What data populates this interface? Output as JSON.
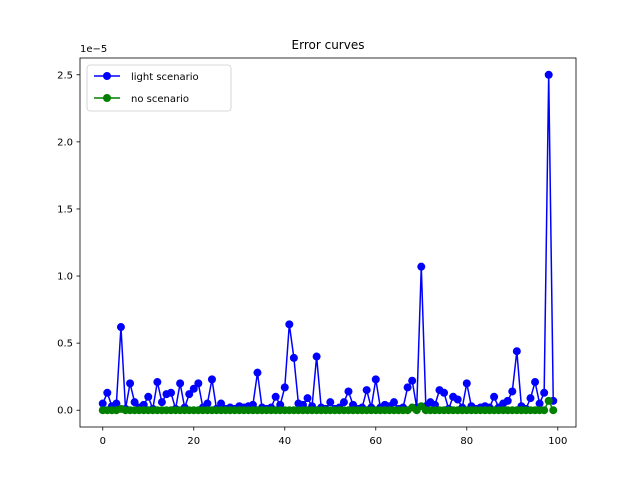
{
  "chart_data": {
    "type": "line",
    "title": "Error curves",
    "xlabel": "",
    "ylabel": "",
    "y_offset_label": "1e−5",
    "xlim": [
      -5,
      104
    ],
    "ylim": [
      -0.125,
      2.625
    ],
    "x_ticks": [
      0,
      20,
      40,
      60,
      80,
      100
    ],
    "x_tick_labels": [
      "0",
      "20",
      "40",
      "60",
      "80",
      "100"
    ],
    "y_ticks": [
      0.0,
      0.5,
      1.0,
      1.5,
      2.0,
      2.5
    ],
    "y_tick_labels": [
      "0.0",
      "0.5",
      "1.0",
      "1.5",
      "2.0",
      "2.5"
    ],
    "y_unit_note": "values in units of 1e-5",
    "grid": false,
    "legend_position": "top-left",
    "x": [
      0,
      1,
      2,
      3,
      4,
      5,
      6,
      7,
      8,
      9,
      10,
      11,
      12,
      13,
      14,
      15,
      16,
      17,
      18,
      19,
      20,
      21,
      22,
      23,
      24,
      25,
      26,
      27,
      28,
      29,
      30,
      31,
      32,
      33,
      34,
      35,
      36,
      37,
      38,
      39,
      40,
      41,
      42,
      43,
      44,
      45,
      46,
      47,
      48,
      49,
      50,
      51,
      52,
      53,
      54,
      55,
      56,
      57,
      58,
      59,
      60,
      61,
      62,
      63,
      64,
      65,
      66,
      67,
      68,
      69,
      70,
      71,
      72,
      73,
      74,
      75,
      76,
      77,
      78,
      79,
      80,
      81,
      82,
      83,
      84,
      85,
      86,
      87,
      88,
      89,
      90,
      91,
      92,
      93,
      94,
      95,
      96,
      97,
      98,
      99
    ],
    "series": [
      {
        "name": "light scenario",
        "color": "#0000ff",
        "values": [
          0.05,
          0.13,
          0.03,
          0.05,
          0.62,
          0.01,
          0.2,
          0.06,
          0.02,
          0.04,
          0.1,
          0.01,
          0.21,
          0.06,
          0.12,
          0.13,
          0.01,
          0.2,
          0.02,
          0.12,
          0.16,
          0.2,
          0.02,
          0.05,
          0.23,
          0.01,
          0.05,
          0.01,
          0.02,
          0.01,
          0.03,
          0.02,
          0.03,
          0.04,
          0.28,
          0.02,
          0.01,
          0.02,
          0.1,
          0.04,
          0.17,
          0.64,
          0.39,
          0.05,
          0.04,
          0.09,
          0.03,
          0.4,
          0.02,
          0.01,
          0.06,
          0.01,
          0.02,
          0.06,
          0.14,
          0.04,
          0.01,
          0.02,
          0.15,
          0.02,
          0.23,
          0.02,
          0.04,
          0.03,
          0.06,
          0.01,
          0.02,
          0.17,
          0.22,
          0.02,
          1.07,
          0.03,
          0.06,
          0.04,
          0.15,
          0.13,
          0.01,
          0.1,
          0.08,
          0.02,
          0.2,
          0.03,
          0.01,
          0.02,
          0.03,
          0.02,
          0.1,
          0.02,
          0.05,
          0.07,
          0.14,
          0.44,
          0.03,
          0.01,
          0.09,
          0.21,
          0.05,
          0.13,
          2.5,
          0.07
        ]
      },
      {
        "name": "no scenario",
        "color": "#008000",
        "values": [
          0.0,
          0.0,
          0.0,
          0.0,
          0.01,
          0.0,
          0.0,
          0.0,
          0.0,
          0.0,
          0.0,
          0.0,
          0.0,
          0.0,
          0.0,
          0.0,
          0.0,
          0.0,
          0.0,
          0.0,
          0.0,
          0.0,
          0.0,
          0.0,
          0.0,
          0.0,
          0.0,
          0.0,
          0.0,
          0.0,
          0.0,
          0.0,
          0.0,
          0.0,
          0.0,
          0.0,
          0.0,
          0.0,
          0.0,
          0.0,
          0.0,
          0.0,
          0.0,
          0.0,
          0.0,
          0.0,
          0.0,
          0.0,
          0.0,
          0.0,
          0.0,
          0.0,
          0.0,
          0.0,
          0.0,
          0.0,
          0.0,
          0.0,
          0.0,
          0.0,
          0.0,
          0.0,
          0.0,
          0.0,
          0.0,
          0.0,
          0.0,
          0.0,
          0.02,
          0.0,
          0.03,
          0.0,
          0.0,
          0.0,
          0.0,
          0.0,
          0.0,
          0.0,
          0.0,
          0.0,
          0.0,
          0.0,
          0.0,
          0.0,
          0.0,
          0.0,
          0.0,
          0.0,
          0.0,
          0.0,
          0.0,
          0.0,
          0.0,
          0.0,
          0.0,
          0.0,
          0.0,
          0.0,
          0.07,
          0.0
        ]
      }
    ]
  }
}
